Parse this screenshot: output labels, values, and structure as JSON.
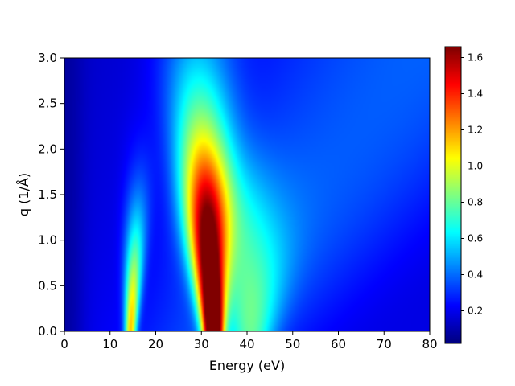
{
  "chart_data": {
    "type": "heatmap",
    "title": "",
    "xlabel": "Energy   (eV)",
    "ylabel": "q   (1/Å)",
    "xlim": [
      0,
      80
    ],
    "ylim": [
      0,
      3.0
    ],
    "x_ticks": [
      "0",
      "10",
      "20",
      "30",
      "40",
      "50",
      "60",
      "70",
      "80"
    ],
    "y_ticks": [
      "0.0",
      "0.5",
      "1.0",
      "1.5",
      "2.0",
      "2.5",
      "3.0"
    ],
    "colormap": "jet",
    "colorbar": {
      "range": [
        0.02,
        1.66
      ],
      "ticks": [
        "0.2",
        "0.4",
        "0.6",
        "0.8",
        "1.0",
        "1.2",
        "1.4",
        "1.6"
      ]
    },
    "features": [
      {
        "peak_energy_at_q0": 14.5,
        "peak_energy_at_qmax": 16.5,
        "q_extent": 1.9,
        "max_value": 1.05
      },
      {
        "peak_energy_at_q0": 32.5,
        "peak_energy_at_qmax": 29.0,
        "q_extent": 2.9,
        "max_value": 1.66
      },
      {
        "peak_energy_at_q0": 41.0,
        "peak_energy_at_qmax": 42.0,
        "q_extent": 1.8,
        "max_value": 0.6
      }
    ],
    "grid": false,
    "legend": "colorbar-right"
  }
}
